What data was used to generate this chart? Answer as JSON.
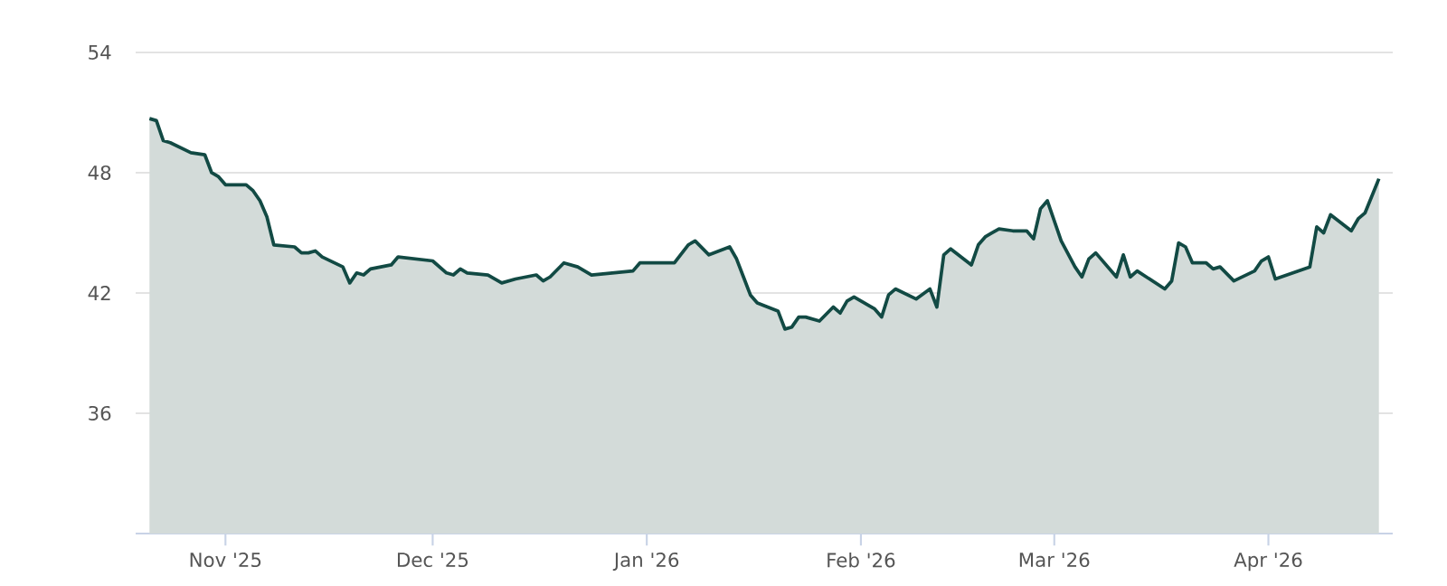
{
  "chart_data": {
    "type": "area",
    "x": [
      "2025-10-21",
      "2025-10-22",
      "2025-10-23",
      "2025-10-24",
      "2025-10-27",
      "2025-10-29",
      "2025-10-30",
      "2025-10-31",
      "2025-11-01",
      "2025-11-04",
      "2025-11-05",
      "2025-11-06",
      "2025-11-07",
      "2025-11-08",
      "2025-11-11",
      "2025-11-12",
      "2025-11-13",
      "2025-11-14",
      "2025-11-15",
      "2025-11-18",
      "2025-11-19",
      "2025-11-20",
      "2025-11-21",
      "2025-11-22",
      "2025-11-25",
      "2025-11-26",
      "2025-12-01",
      "2025-12-03",
      "2025-12-04",
      "2025-12-05",
      "2025-12-06",
      "2025-12-09",
      "2025-12-11",
      "2025-12-13",
      "2025-12-16",
      "2025-12-17",
      "2025-12-18",
      "2025-12-20",
      "2025-12-22",
      "2025-12-24",
      "2025-12-30",
      "2025-12-31",
      "2026-01-05",
      "2026-01-07",
      "2026-01-08",
      "2026-01-10",
      "2026-01-13",
      "2026-01-14",
      "2026-01-15",
      "2026-01-16",
      "2026-01-17",
      "2026-01-20",
      "2026-01-21",
      "2026-01-22",
      "2026-01-23",
      "2026-01-24",
      "2026-01-26",
      "2026-01-28",
      "2026-01-29",
      "2026-01-30",
      "2026-01-31",
      "2026-02-03",
      "2026-02-04",
      "2026-02-05",
      "2026-02-06",
      "2026-02-09",
      "2026-02-11",
      "2026-02-12",
      "2026-02-13",
      "2026-02-14",
      "2026-02-17",
      "2026-02-18",
      "2026-02-19",
      "2026-02-20",
      "2026-02-21",
      "2026-02-23",
      "2026-02-25",
      "2026-02-26",
      "2026-02-27",
      "2026-02-28",
      "2026-03-02",
      "2026-03-04",
      "2026-03-05",
      "2026-03-06",
      "2026-03-07",
      "2026-03-10",
      "2026-03-11",
      "2026-03-12",
      "2026-03-13",
      "2026-03-17",
      "2026-03-18",
      "2026-03-19",
      "2026-03-20",
      "2026-03-21",
      "2026-03-23",
      "2026-03-24",
      "2026-03-25",
      "2026-03-27",
      "2026-03-30",
      "2026-03-31",
      "2026-04-01",
      "2026-04-02",
      "2026-04-07",
      "2026-04-08",
      "2026-04-09",
      "2026-04-10",
      "2026-04-13",
      "2026-04-14",
      "2026-04-15",
      "2026-04-17"
    ],
    "series": [
      {
        "color": "#124a44",
        "values": [
          50.7,
          50.6,
          49.6,
          49.5,
          49.0,
          48.9,
          48.0,
          47.8,
          47.4,
          47.4,
          47.1,
          46.6,
          45.8,
          44.4,
          44.3,
          44.0,
          44.0,
          44.1,
          43.8,
          43.3,
          42.5,
          43.0,
          42.9,
          43.2,
          43.4,
          43.8,
          43.6,
          43.0,
          42.9,
          43.2,
          43.0,
          42.9,
          42.5,
          42.7,
          42.9,
          42.6,
          42.8,
          43.5,
          43.3,
          42.9,
          43.1,
          43.5,
          43.5,
          44.4,
          44.6,
          43.9,
          44.3,
          43.7,
          42.8,
          41.9,
          41.5,
          41.1,
          40.2,
          40.3,
          40.8,
          40.8,
          40.6,
          41.3,
          41.0,
          41.6,
          41.8,
          41.2,
          40.8,
          41.9,
          42.2,
          41.7,
          42.2,
          41.3,
          43.9,
          44.2,
          43.4,
          44.4,
          44.8,
          45.0,
          45.2,
          45.1,
          45.1,
          44.7,
          46.2,
          46.6,
          44.6,
          43.3,
          42.8,
          43.7,
          44.0,
          42.8,
          43.9,
          42.8,
          43.1,
          42.2,
          42.6,
          44.5,
          44.3,
          43.5,
          43.5,
          43.2,
          43.3,
          42.6,
          43.1,
          43.6,
          43.8,
          42.7,
          43.3,
          45.3,
          45.0,
          45.9,
          45.1,
          45.7,
          46.0,
          47.7
        ]
      }
    ],
    "xlim": [
      "2025-10-19",
      "2026-04-19"
    ],
    "xticks": [
      {
        "value": "2025-11-01",
        "label": "Nov '25"
      },
      {
        "value": "2025-12-01",
        "label": "Dec '25"
      },
      {
        "value": "2026-01-01",
        "label": "Jan '26"
      },
      {
        "value": "2026-02-01",
        "label": "Feb '26"
      },
      {
        "value": "2026-03-01",
        "label": "Mar '26"
      },
      {
        "value": "2026-04-01",
        "label": "Apr '26"
      }
    ],
    "ylim": [
      30,
      54
    ],
    "yticks": [
      36,
      42,
      48,
      54
    ],
    "grid": "y"
  }
}
